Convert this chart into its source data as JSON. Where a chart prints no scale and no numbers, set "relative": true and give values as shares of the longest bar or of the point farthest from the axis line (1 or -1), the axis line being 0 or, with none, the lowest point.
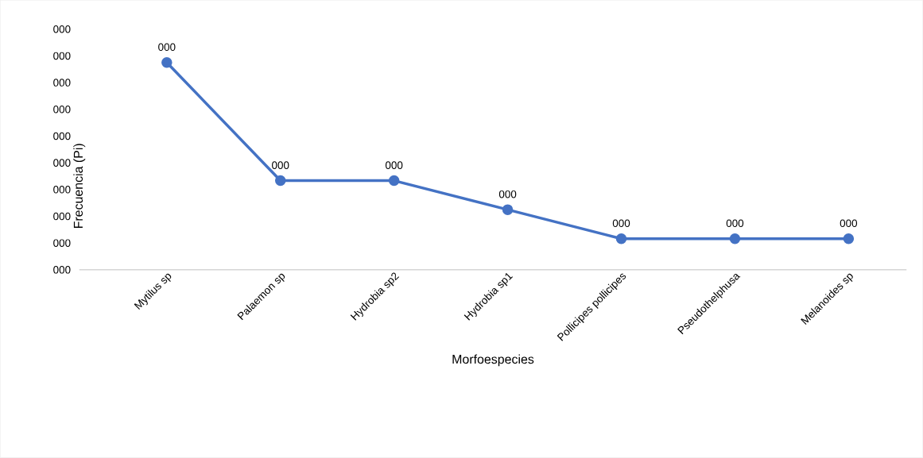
{
  "chart_data": {
    "type": "line",
    "xlabel": "Morfoespecies",
    "ylabel": "Frecuencia (Pi)",
    "relative": true,
    "categories": [
      "Mytilus sp",
      "Palaemon sp",
      "Hydrobia sp2",
      "Hydrobia sp1",
      "Pollicipes pollicipes",
      "Pseudothelphusa",
      "Melanoides sp"
    ],
    "series": [
      {
        "color": "#4472c4",
        "values": [
          1,
          0.43,
          0.43,
          0.29,
          0.15,
          0.15,
          0.15
        ]
      }
    ],
    "annotations": [
      "000",
      "000",
      "000",
      "000",
      "000",
      "000",
      "000",
      "000",
      "000",
      "000",
      {
        "text": "000",
        "x": "Mytilus sp",
        "y": 1
      },
      {
        "text": "000",
        "x": "Palaemon sp",
        "y": 0.43
      },
      {
        "text": "000",
        "x": "Hydrobia sp2",
        "y": 0.43
      },
      {
        "text": "000",
        "x": "Hydrobia sp1",
        "y": 0.29
      },
      {
        "text": "000",
        "x": "Pollicipes pollicipes",
        "y": 0.15
      },
      {
        "text": "000",
        "x": "Pseudothelphusa",
        "y": 0.15
      },
      {
        "text": "000",
        "x": "Melanoides sp",
        "y": 0.15
      }
    ],
    "marker": "circle",
    "line_style": "solid"
  }
}
